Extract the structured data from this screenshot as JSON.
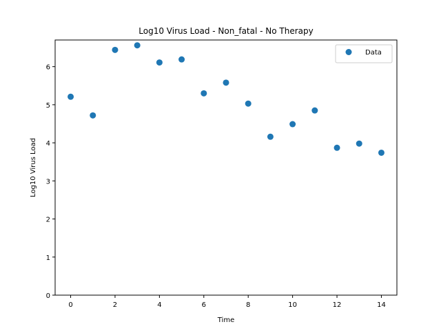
{
  "chart_data": {
    "type": "scatter",
    "title": "Log10 Virus Load - Non_fatal - No Therapy",
    "xlabel": "Time",
    "ylabel": "Log10 Virus Load",
    "xlim": [
      -0.7,
      14.7
    ],
    "ylim": [
      0,
      6.7
    ],
    "xticks": [
      "0",
      "2",
      "4",
      "6",
      "8",
      "10",
      "12",
      "14"
    ],
    "yticks": [
      "0",
      "1",
      "2",
      "3",
      "4",
      "5",
      "6"
    ],
    "grid": false,
    "legend_position": "upper-right",
    "series": [
      {
        "name": "Data",
        "color": "#1f77b4",
        "x": [
          0,
          1,
          2,
          3,
          4,
          5,
          6,
          7,
          8,
          9,
          10,
          11,
          12,
          13,
          14
        ],
        "y": [
          5.21,
          4.72,
          6.44,
          6.56,
          6.11,
          6.19,
          5.3,
          5.58,
          5.03,
          4.16,
          4.49,
          4.85,
          3.87,
          3.98,
          3.74
        ]
      }
    ]
  }
}
